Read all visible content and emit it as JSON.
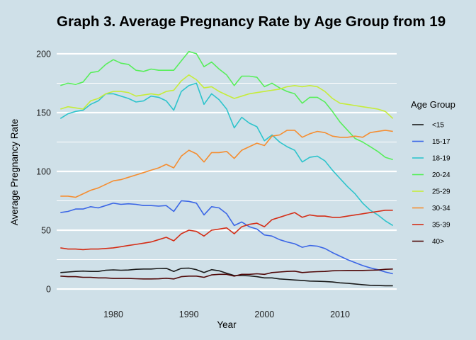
{
  "chart_data": {
    "type": "line",
    "title": "Graph 3. Average Pregnancy Rate by Age Group from 19",
    "xlabel": "Year",
    "ylabel": "Average Pregnancy Rate",
    "xlim": [
      1972.5,
      2017.5
    ],
    "ylim": [
      -12,
      212
    ],
    "x_ticks": [
      1980,
      1990,
      2000,
      2010
    ],
    "y_ticks": [
      0,
      50,
      100,
      150,
      200
    ],
    "grid": "horizontal major and minor lines",
    "background": "#cfe0e8",
    "legend_position": "right",
    "legend_title": "Age Group",
    "x": [
      1973,
      1974,
      1975,
      1976,
      1977,
      1978,
      1979,
      1980,
      1981,
      1982,
      1983,
      1984,
      1985,
      1986,
      1987,
      1988,
      1989,
      1990,
      1991,
      1992,
      1993,
      1994,
      1995,
      1996,
      1997,
      1998,
      1999,
      2000,
      2001,
      2002,
      2003,
      2004,
      2005,
      2006,
      2007,
      2008,
      2009,
      2010,
      2011,
      2012,
      2013,
      2014,
      2015,
      2016,
      2017
    ],
    "series": [
      {
        "name": "<15",
        "color": "#1a1a1a",
        "values": [
          14,
          14.5,
          15,
          15.3,
          15,
          15,
          16,
          16.3,
          16,
          16.2,
          16.8,
          17,
          17,
          17.5,
          17.6,
          15,
          17.6,
          17.8,
          16.5,
          14,
          16.5,
          15.5,
          13.5,
          11.5,
          11.5,
          11.2,
          10.5,
          9.5,
          9.5,
          8.6,
          8.2,
          7.7,
          7.3,
          6.8,
          6.6,
          6.4,
          6,
          5.3,
          4.9,
          4.3,
          3.7,
          3.2,
          3,
          2.8,
          2.8
        ]
      },
      {
        "name": "15-17",
        "color": "#3b66e6",
        "values": [
          65,
          66,
          68,
          68,
          70,
          69,
          71,
          73,
          72,
          72.5,
          72,
          71,
          71,
          70.5,
          71,
          66,
          75,
          74.5,
          73,
          63,
          70,
          69,
          64,
          54,
          57,
          53,
          51,
          46,
          45,
          42,
          40,
          38.5,
          35.5,
          37,
          36.5,
          34.5,
          31,
          28,
          25,
          22.5,
          20,
          18,
          16.5,
          14.5,
          13
        ]
      },
      {
        "name": "18-19",
        "color": "#2ec4cc",
        "values": [
          145,
          149,
          151,
          152,
          157,
          160,
          166,
          166,
          164,
          162,
          159,
          160,
          164,
          163,
          160,
          152,
          168,
          173,
          175,
          157,
          166,
          161,
          153,
          137,
          146,
          141,
          138,
          126,
          131,
          125,
          121,
          118,
          108,
          112,
          113,
          109,
          101,
          94,
          87,
          81,
          73,
          67,
          63,
          58,
          54
        ]
      },
      {
        "name": "20-24",
        "color": "#57ee5a",
        "values": [
          173,
          175,
          174,
          176,
          184,
          185,
          191,
          195,
          192,
          191,
          186,
          185,
          187,
          186,
          186,
          186,
          194,
          202,
          200,
          189,
          193,
          187,
          182,
          173,
          181,
          181,
          180,
          172,
          175,
          171,
          168,
          166,
          158,
          163,
          163,
          159,
          151,
          142,
          135,
          128,
          125,
          121,
          117,
          112,
          110
        ]
      },
      {
        "name": "25-29",
        "color": "#c6ec3a",
        "values": [
          153,
          155,
          154,
          153,
          160,
          162,
          166,
          168,
          168,
          167,
          164,
          165,
          166,
          165,
          168,
          169,
          177,
          182,
          178,
          171,
          172,
          168,
          165,
          162,
          164,
          166,
          167,
          168,
          169,
          170,
          172,
          173,
          172,
          173,
          172,
          168,
          162,
          158,
          157,
          156,
          155,
          154,
          153,
          151,
          145
        ]
      },
      {
        "name": "30-34",
        "color": "#f58d30",
        "values": [
          79,
          79,
          78,
          81,
          84,
          86,
          89,
          92,
          93,
          95,
          97,
          99,
          101,
          103,
          106,
          103,
          113,
          118,
          115,
          108,
          116,
          116,
          117,
          111,
          118,
          121,
          124,
          122,
          130,
          131,
          135,
          135,
          129,
          132,
          134,
          133,
          130,
          129,
          129,
          130,
          129,
          133,
          134,
          135,
          134
        ]
      },
      {
        "name": "35-39",
        "color": "#d42e17",
        "values": [
          35,
          34,
          34,
          33.5,
          34,
          34,
          34.5,
          35,
          36,
          37,
          38,
          39,
          40,
          42,
          44,
          41,
          47,
          50,
          49,
          45,
          50,
          51,
          52,
          47,
          53,
          55,
          56,
          53,
          59,
          61,
          63,
          65,
          61,
          63,
          62,
          62,
          61,
          61,
          62,
          63,
          64,
          65,
          66,
          67,
          67
        ]
      },
      {
        "name": "40>",
        "color": "#500808",
        "values": [
          11,
          10.5,
          10.5,
          10,
          10,
          9.5,
          9.5,
          9,
          9,
          9,
          8.8,
          8.6,
          8.6,
          8.7,
          9.2,
          8.6,
          10.5,
          11,
          11,
          10,
          12,
          12.5,
          12.5,
          11,
          12.5,
          12.5,
          13,
          12.5,
          14,
          14.5,
          15,
          15.2,
          14,
          14.5,
          14.8,
          15,
          15.5,
          15.7,
          15.8,
          15.8,
          15.8,
          16,
          16.2,
          16.8,
          17
        ]
      }
    ]
  }
}
